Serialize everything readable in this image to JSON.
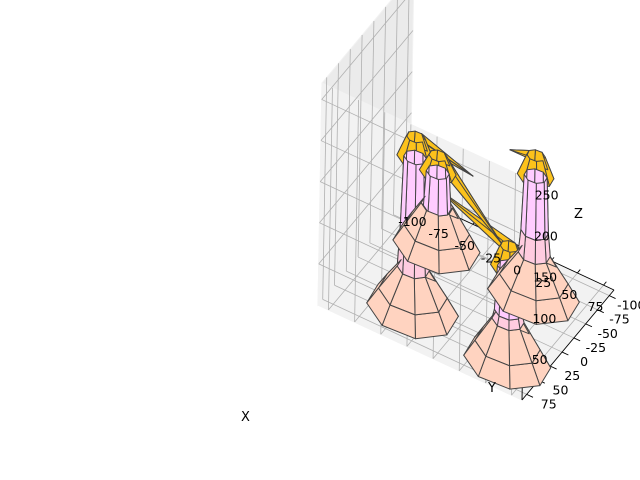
{
  "chart_data": {
    "type": "3d-surface",
    "title": "",
    "xlabel": "X",
    "ylabel": "Y",
    "zlabel": "Z",
    "xlim": [
      -110,
      85
    ],
    "ylim": [
      -110,
      85
    ],
    "zlim": [
      0,
      270
    ],
    "x_ticks": [
      "-100",
      "-75",
      "-50",
      "-25",
      "0",
      "25",
      "50",
      "75"
    ],
    "y_ticks": [
      "-100",
      "-75",
      "-50",
      "-25",
      "0",
      "25",
      "50",
      "75"
    ],
    "z_ticks": [
      "50",
      "100",
      "150",
      "200",
      "250"
    ],
    "x_tick_values": [
      -100,
      -75,
      -50,
      -25,
      0,
      25,
      50,
      75
    ],
    "y_tick_values": [
      -100,
      -75,
      -50,
      -25,
      0,
      25,
      50,
      75
    ],
    "z_tick_values": [
      50,
      100,
      150,
      200,
      250
    ],
    "grid": true,
    "colors": {
      "base": "#ffd3c0",
      "lower_body": "#ffcce0",
      "neck": "#ffccff",
      "head": "#fcc21b",
      "edge": "#444444"
    },
    "figures": [
      {
        "name": "flamingo-front-left",
        "x": -60,
        "y": -55,
        "base_radius": 38,
        "neck_top": 95,
        "head_z": 115,
        "beak_to": [
          45,
          45,
          140
        ]
      },
      {
        "name": "flamingo-front-center",
        "x": 35,
        "y": -50,
        "base_radius": 40,
        "neck_top": 150,
        "head_z": 175,
        "beak_to": [
          30,
          -5,
          210
        ]
      },
      {
        "name": "flamingo-back-left",
        "x": -40,
        "y": 40,
        "base_radius": 40,
        "neck_top": 190,
        "head_z": 215,
        "beak_to": [
          15,
          40,
          200
        ]
      },
      {
        "name": "flamingo-back-right",
        "x": 55,
        "y": 50,
        "base_radius": 38,
        "neck_top": 120,
        "head_z": 145,
        "beak_to": [
          -20,
          35,
          160
        ]
      }
    ]
  }
}
